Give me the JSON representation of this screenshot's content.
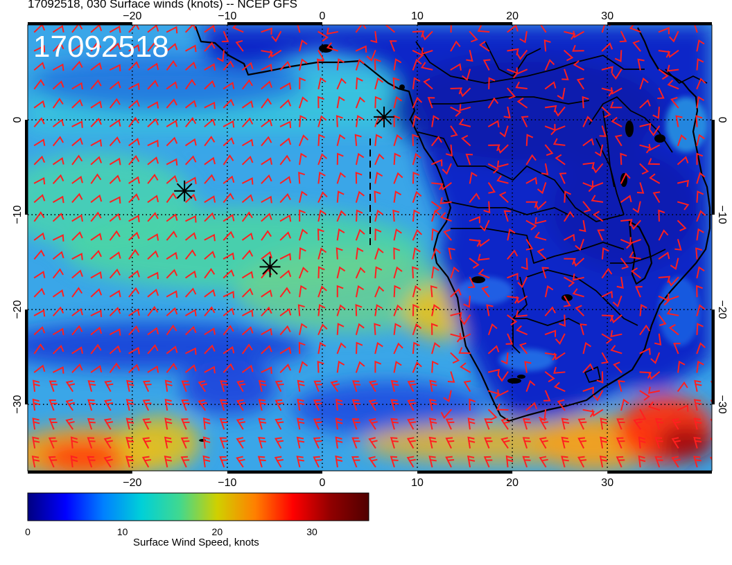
{
  "figure": {
    "title": "17092518, 030 Surface winds (knots) -- NCEP GFS",
    "stamp": "17092518"
  },
  "map": {
    "lon_range": [
      -31,
      41
    ],
    "lat_range": [
      -37,
      10
    ],
    "lon_ticks": [
      -20,
      -10,
      0,
      10,
      20,
      30
    ],
    "lat_ticks": [
      0,
      -10,
      -20,
      -30
    ],
    "lon_tick_labels": [
      "−20",
      "−10",
      "0",
      "10",
      "20",
      "30"
    ],
    "lat_tick_labels": [
      "0",
      "−10",
      "−20",
      "−30"
    ],
    "colors": {
      "wind_barb": "#ff1f1f",
      "coastline": "#000000",
      "grid": "#000000"
    },
    "markers": [
      {
        "lon": -14.5,
        "lat": -7.5,
        "symbol": "asterisk"
      },
      {
        "lon": -5.5,
        "lat": -15.5,
        "symbol": "asterisk"
      },
      {
        "lon": 6.5,
        "lat": 0.3,
        "symbol": "asterisk"
      }
    ]
  },
  "colorbar": {
    "label": "Surface Wind Speed, knots",
    "range": [
      0,
      36
    ],
    "ticks": [
      "0",
      "10",
      "20",
      "30"
    ],
    "stops": [
      "#000080",
      "#0000ff",
      "#0080ff",
      "#00d0d8",
      "#40d890",
      "#d0d000",
      "#ff8000",
      "#ff0000",
      "#900000",
      "#500000"
    ]
  }
}
